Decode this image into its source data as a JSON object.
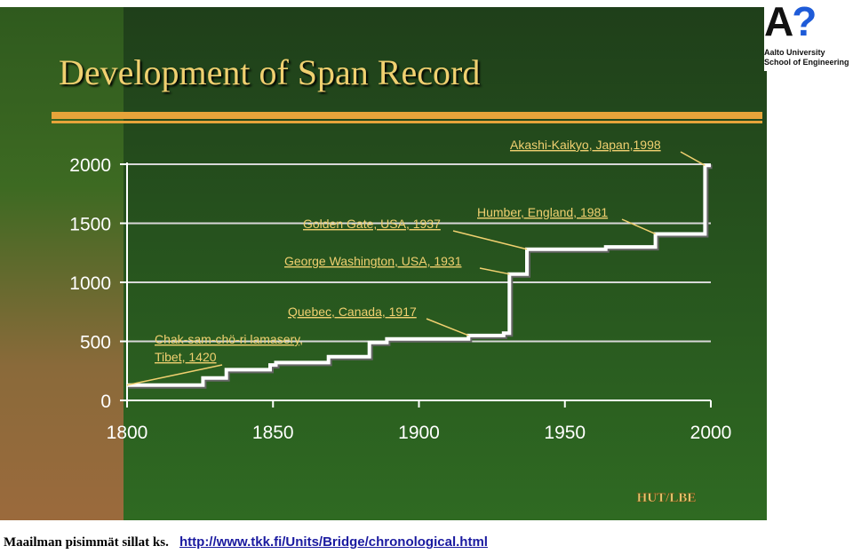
{
  "slide": {
    "title": "Development of Span Record",
    "credit": "HUT/LBE"
  },
  "logo": {
    "mark": "A?",
    "line1": "Aalto University",
    "line2": "School of Engineering"
  },
  "footer": {
    "note": "Maailman pisimmät sillat ks.",
    "link": "http://www.tkk.fi/Units/Bridge/chronological.html"
  },
  "colors": {
    "accent": "#e7a43a",
    "title": "#f0d070",
    "annotation": "#f0d070",
    "line": "#ffffff"
  },
  "chart_data": {
    "type": "line",
    "step": true,
    "title": "Development of Span Record",
    "xlabel": "",
    "ylabel": "",
    "xlim": [
      1800,
      2000
    ],
    "ylim": [
      0,
      2000
    ],
    "x_ticks": [
      "1800",
      "1850",
      "1900",
      "1950",
      "2000"
    ],
    "y_ticks": [
      "0",
      "500",
      "1000",
      "1500",
      "2000"
    ],
    "grid": true,
    "series": [
      {
        "x": [
          1800,
          1826,
          1826,
          1834,
          1834,
          1849,
          1849,
          1851,
          1851,
          1869,
          1869,
          1883,
          1883,
          1889,
          1889,
          1917,
          1917,
          1929,
          1929,
          1931,
          1931,
          1937,
          1937,
          1964,
          1964,
          1981,
          1981,
          1998,
          1998,
          2000
        ],
        "y": [
          130,
          130,
          190,
          190,
          260,
          260,
          300,
          300,
          320,
          320,
          370,
          370,
          490,
          490,
          520,
          520,
          550,
          550,
          570,
          570,
          1070,
          1070,
          1280,
          1280,
          1300,
          1300,
          1410,
          1410,
          1990,
          1990
        ]
      }
    ],
    "annotations": [
      {
        "lines": [
          "Chak-sam-chö-ri lamasery,",
          "Tibet, 1420"
        ],
        "x": 1800,
        "y": 130
      },
      {
        "lines": [
          "Quebec, Canada, 1917"
        ],
        "x": 1917,
        "y": 550
      },
      {
        "lines": [
          "George Washington, USA, 1931"
        ],
        "x": 1931,
        "y": 1070
      },
      {
        "lines": [
          "Golden Gate, USA, 1937"
        ],
        "x": 1937,
        "y": 1280
      },
      {
        "lines": [
          "Humber, England, 1981"
        ],
        "x": 1981,
        "y": 1410
      },
      {
        "lines": [
          "Akashi-Kaikyo, Japan,1998"
        ],
        "x": 1998,
        "y": 1990
      }
    ]
  }
}
